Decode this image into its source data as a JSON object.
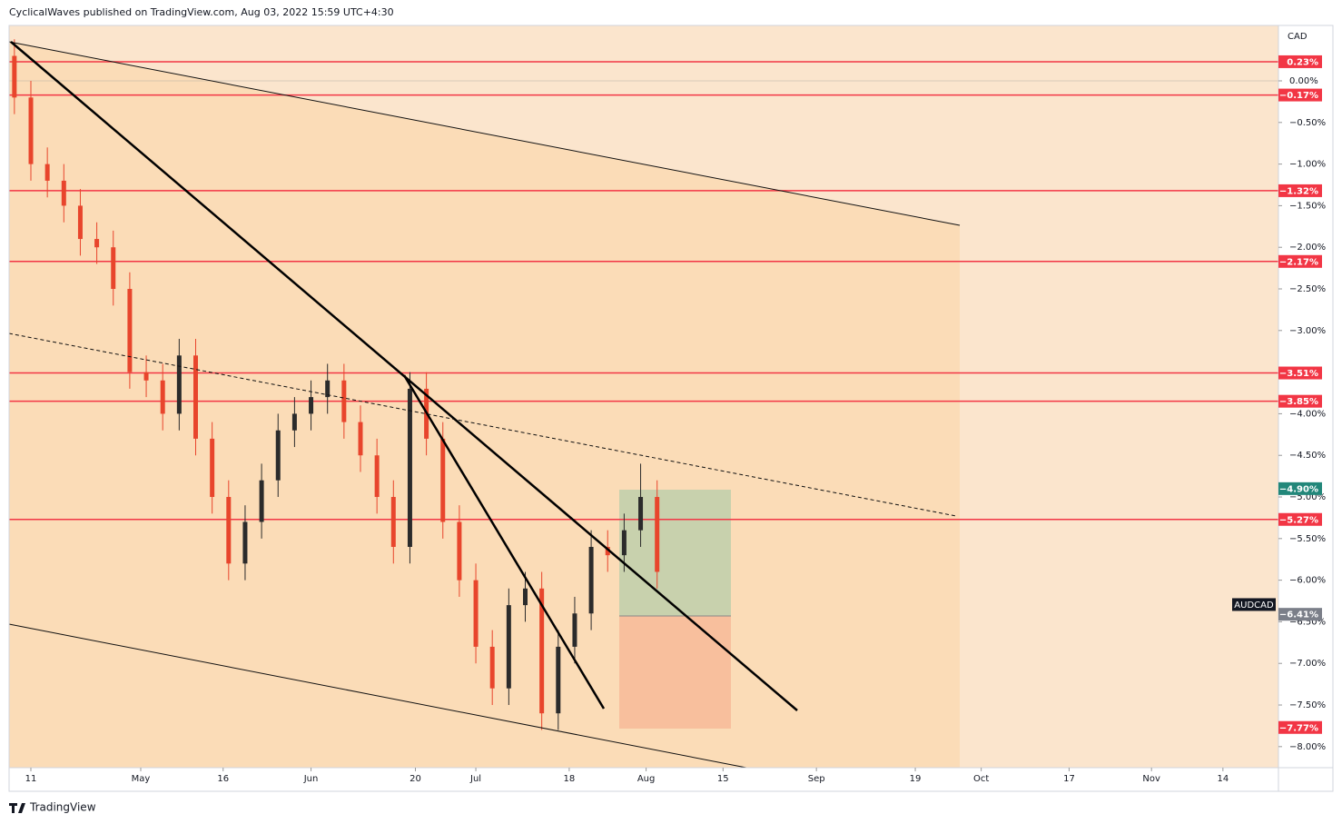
{
  "header": {
    "text": "CyclicalWaves published on TradingView.com, Aug 03, 2022 15:59 UTC+4:30"
  },
  "footer": {
    "brand": "TradingView"
  },
  "chart_data": {
    "type": "candlestick",
    "currency": "CAD",
    "ylim": [
      0.666,
      -8.253
    ],
    "yticks": [
      {
        "value": 0,
        "label": "0.00%"
      },
      {
        "value": -0.5,
        "label": "−0.50%"
      },
      {
        "value": -1,
        "label": "−1.00%"
      },
      {
        "value": -1.5,
        "label": "−1.50%"
      },
      {
        "value": -2,
        "label": "−2.00%"
      },
      {
        "value": -2.5,
        "label": "−2.50%"
      },
      {
        "value": -3,
        "label": "−3.00%"
      },
      {
        "value": -4,
        "label": "−4.00%"
      },
      {
        "value": -4.5,
        "label": "−4.50%"
      },
      {
        "value": -5,
        "label": "−5.00%"
      },
      {
        "value": -5.5,
        "label": "−5.50%"
      },
      {
        "value": -6,
        "label": "−6.00%"
      },
      {
        "value": -6.5,
        "label": "−6.50%"
      },
      {
        "value": -7,
        "label": "−7.00%"
      },
      {
        "value": -7.5,
        "label": "−7.50%"
      },
      {
        "value": -8,
        "label": "−8.00%"
      }
    ],
    "xticks": [
      {
        "value": "2022-04-11",
        "label": "11"
      },
      {
        "value": "2022-05-01",
        "label": "May"
      },
      {
        "value": "2022-05-16",
        "label": "16"
      },
      {
        "value": "2022-06-01",
        "label": "Jun"
      },
      {
        "value": "2022-06-20",
        "label": "20"
      },
      {
        "value": "2022-07-01",
        "label": "Jul"
      },
      {
        "value": "2022-07-18",
        "label": "18"
      },
      {
        "value": "2022-08-01",
        "label": "Aug"
      },
      {
        "value": "2022-08-15",
        "label": "15"
      },
      {
        "value": "2022-09-01",
        "label": "Sep"
      },
      {
        "value": "2022-09-19",
        "label": "19"
      },
      {
        "value": "2022-10-01",
        "label": "Oct"
      },
      {
        "value": "2022-10-17",
        "label": "17"
      },
      {
        "value": "2022-11-01",
        "label": "Nov"
      },
      {
        "value": "2022-11-14",
        "label": "14"
      }
    ],
    "levels": [
      {
        "value": 0.23,
        "label": "0.23%",
        "color": "#f23645",
        "line": true
      },
      {
        "value": -0.17,
        "label": "−0.17%",
        "color": "#f23645",
        "line": true
      },
      {
        "value": -1.32,
        "label": "−1.32%",
        "color": "#f23645",
        "line": true
      },
      {
        "value": -2.17,
        "label": "−2.17%",
        "color": "#f23645",
        "line": true
      },
      {
        "value": -3.51,
        "label": "−3.51%",
        "color": "#f23645",
        "line": true
      },
      {
        "value": -3.85,
        "label": "−3.85%",
        "color": "#f23645",
        "line": true
      },
      {
        "value": -4.9,
        "label": "−4.90%",
        "color": "#22877a",
        "line": false
      },
      {
        "value": -5.27,
        "label": "−5.27%",
        "color": "#f23645",
        "line": true
      },
      {
        "value": -6.41,
        "label": "−6.41%",
        "color": "#7b7f89",
        "line": false
      },
      {
        "value": -7.77,
        "label": "−7.77%",
        "color": "#f23645",
        "line": false
      }
    ],
    "series": {
      "name": "AUDCAD",
      "up_color": "#2b2b2b",
      "down_color": "#e8452c",
      "x": [
        "2022-04-08",
        "2022-04-11",
        "2022-04-14",
        "2022-04-17",
        "2022-04-20",
        "2022-04-23",
        "2022-04-26",
        "2022-04-29",
        "2022-05-02",
        "2022-05-05",
        "2022-05-08",
        "2022-05-11",
        "2022-05-14",
        "2022-05-17",
        "2022-05-20",
        "2022-05-23",
        "2022-05-26",
        "2022-05-29",
        "2022-06-01",
        "2022-06-04",
        "2022-06-07",
        "2022-06-10",
        "2022-06-13",
        "2022-06-16",
        "2022-06-19",
        "2022-06-22",
        "2022-06-25",
        "2022-06-28",
        "2022-07-01",
        "2022-07-04",
        "2022-07-07",
        "2022-07-10",
        "2022-07-13",
        "2022-07-16",
        "2022-07-19",
        "2022-07-22",
        "2022-07-25",
        "2022-07-28",
        "2022-07-31",
        "2022-08-03"
      ],
      "open": [
        0.3,
        -0.2,
        -1.0,
        -1.2,
        -1.5,
        -1.9,
        -2.0,
        -2.5,
        -3.5,
        -3.6,
        -4.0,
        -3.3,
        -4.3,
        -5.0,
        -5.8,
        -5.3,
        -4.8,
        -4.2,
        -4.0,
        -3.8,
        -3.6,
        -4.1,
        -4.5,
        -5.0,
        -5.6,
        -3.7,
        -4.3,
        -5.3,
        -6.0,
        -6.8,
        -7.3,
        -6.3,
        -6.1,
        -7.6,
        -6.8,
        -6.4,
        -5.6,
        -5.7,
        -5.4,
        -5.0
      ],
      "high": [
        0.5,
        0.0,
        -0.8,
        -1.0,
        -1.3,
        -1.7,
        -1.8,
        -2.3,
        -3.3,
        -3.4,
        -3.1,
        -3.1,
        -4.1,
        -4.8,
        -5.1,
        -4.6,
        -4.0,
        -3.8,
        -3.6,
        -3.4,
        -3.4,
        -3.9,
        -4.3,
        -4.8,
        -3.5,
        -3.5,
        -4.1,
        -5.1,
        -5.8,
        -6.6,
        -6.1,
        -5.9,
        -5.9,
        -6.6,
        -6.2,
        -5.4,
        -5.4,
        -5.2,
        -4.6,
        -4.8
      ],
      "low": [
        -0.4,
        -1.2,
        -1.4,
        -1.7,
        -2.1,
        -2.2,
        -2.7,
        -3.7,
        -3.8,
        -4.2,
        -4.2,
        -4.5,
        -5.2,
        -6.0,
        -6.0,
        -5.5,
        -5.0,
        -4.4,
        -4.2,
        -4.0,
        -4.3,
        -4.7,
        -5.2,
        -5.8,
        -5.8,
        -4.5,
        -5.5,
        -6.2,
        -7.0,
        -7.5,
        -7.5,
        -6.5,
        -7.8,
        -7.8,
        -7.0,
        -6.6,
        -5.9,
        -5.9,
        -5.6,
        -6.1
      ],
      "close": [
        -0.2,
        -1.0,
        -1.2,
        -1.5,
        -1.9,
        -2.0,
        -2.5,
        -3.5,
        -3.6,
        -4.0,
        -3.3,
        -4.3,
        -5.0,
        -5.8,
        -5.3,
        -4.8,
        -4.2,
        -4.0,
        -3.8,
        -3.6,
        -4.1,
        -4.5,
        -5.0,
        -5.6,
        -3.7,
        -4.3,
        -5.3,
        -6.0,
        -6.8,
        -7.3,
        -6.3,
        -6.1,
        -7.6,
        -6.8,
        -6.4,
        -5.6,
        -5.7,
        -5.4,
        -5.0,
        -5.9
      ]
    }
  }
}
